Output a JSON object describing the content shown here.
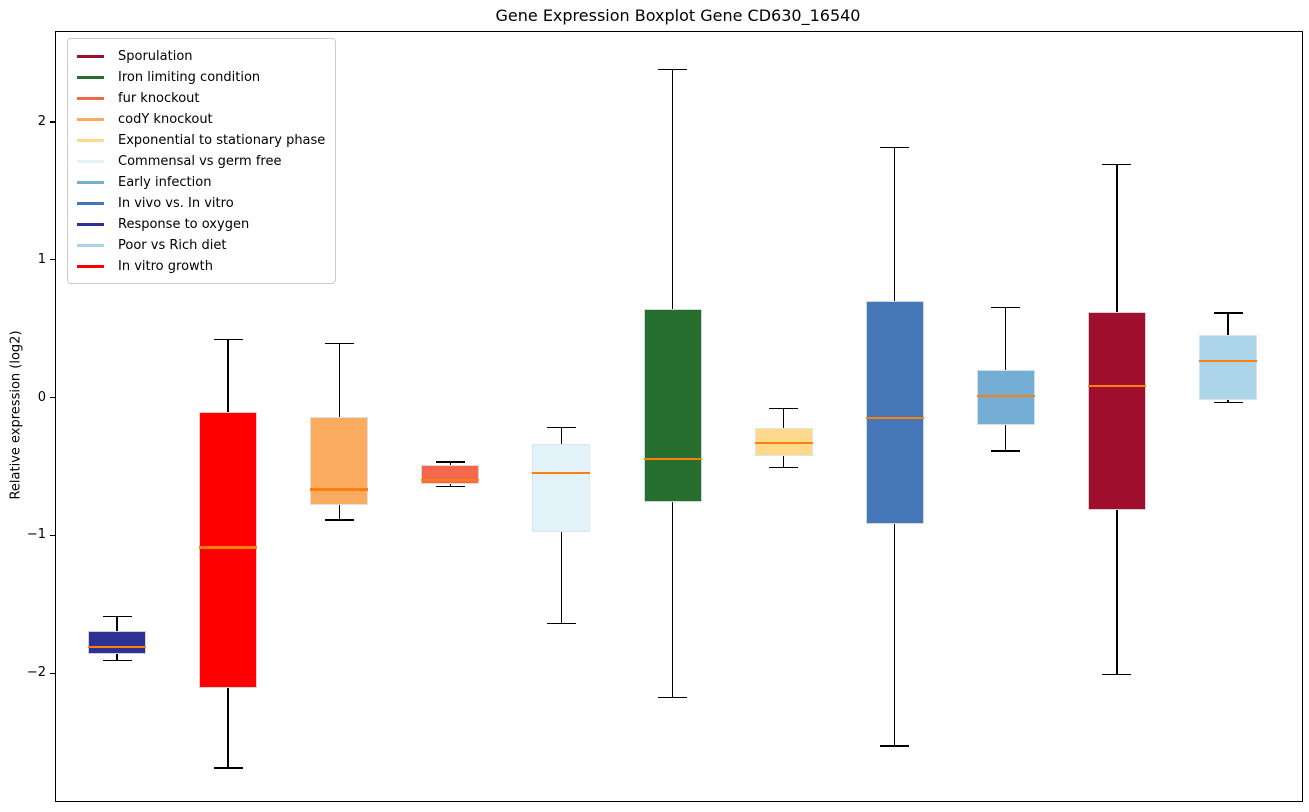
{
  "chart_data": {
    "type": "boxplot",
    "title": "Gene Expression Boxplot Gene CD630_16540",
    "xlabel": "",
    "ylabel": "Relative expression (log2)",
    "ylim": [
      -2.92,
      2.66
    ],
    "grid": false,
    "legend_position": "upper left",
    "yticks": [
      {
        "value": 2,
        "label": "2"
      },
      {
        "value": 1,
        "label": "1"
      },
      {
        "value": 0,
        "label": "0"
      },
      {
        "value": -1,
        "label": "−1"
      },
      {
        "value": -2,
        "label": "−2"
      }
    ],
    "median_color": "#ff7f0e",
    "whisker_color": "#000000",
    "legend": [
      {
        "label": "Sporulation",
        "color": "#a00e2e"
      },
      {
        "label": "Iron limiting condition",
        "color": "#266e2e"
      },
      {
        "label": "fur knockout",
        "color": "#f4694b"
      },
      {
        "label": "codY knockout",
        "color": "#fbab60"
      },
      {
        "label": "Exponential to stationary phase",
        "color": "#fdd98b"
      },
      {
        "label": "Commensal vs germ free",
        "color": "#e1f2f9"
      },
      {
        "label": "Early infection",
        "color": "#74aed4"
      },
      {
        "label": "In vivo vs. In vitro",
        "color": "#4577b8"
      },
      {
        "label": "Response to oxygen",
        "color": "#2d3193"
      },
      {
        "label": "Poor vs Rich diet",
        "color": "#abd4e8"
      },
      {
        "label": "In vitro growth",
        "color": "#ff0000"
      }
    ],
    "series": [
      {
        "name": "Response to oxygen",
        "color": "#2d3193",
        "whisker_low": -1.9,
        "q1": -1.85,
        "median": -1.8,
        "q3": -1.69,
        "whisker_high": -1.58
      },
      {
        "name": "In vitro growth",
        "color": "#ff0000",
        "whisker_low": -2.68,
        "q1": -2.1,
        "median": -1.08,
        "q3": -0.1,
        "whisker_high": 0.43
      },
      {
        "name": "codY knockout",
        "color": "#fbab60",
        "whisker_low": -0.88,
        "q1": -0.77,
        "median": -0.66,
        "q3": -0.13,
        "whisker_high": 0.4
      },
      {
        "name": "fur knockout",
        "color": "#f4694b",
        "whisker_low": -0.64,
        "q1": -0.62,
        "median": -0.59,
        "q3": -0.48,
        "whisker_high": -0.46
      },
      {
        "name": "Commensal vs germ free",
        "color": "#e1f2f9",
        "whisker_low": -1.63,
        "q1": -0.97,
        "median": -0.54,
        "q3": -0.33,
        "whisker_high": -0.21
      },
      {
        "name": "Iron limiting condition",
        "color": "#266e2e",
        "whisker_low": -2.17,
        "q1": -0.75,
        "median": -0.44,
        "q3": 0.65,
        "whisker_high": 2.39
      },
      {
        "name": "Exponential to stationary phase",
        "color": "#fdd98b",
        "whisker_low": -0.5,
        "q1": -0.42,
        "median": -0.32,
        "q3": -0.21,
        "whisker_high": -0.07
      },
      {
        "name": "In vivo vs. In vitro",
        "color": "#4577b8",
        "whisker_low": -2.52,
        "q1": -0.91,
        "median": -0.14,
        "q3": 0.71,
        "whisker_high": 1.82
      },
      {
        "name": "Early infection",
        "color": "#74aed4",
        "whisker_low": -0.38,
        "q1": -0.19,
        "median": 0.02,
        "q3": 0.21,
        "whisker_high": 0.66
      },
      {
        "name": "Sporulation",
        "color": "#a00e2e",
        "whisker_low": -2.0,
        "q1": -0.81,
        "median": 0.09,
        "q3": 0.63,
        "whisker_high": 1.7
      },
      {
        "name": "Poor vs Rich diet",
        "color": "#abd4e8",
        "whisker_low": -0.03,
        "q1": -0.01,
        "median": 0.27,
        "q3": 0.46,
        "whisker_high": 0.62
      }
    ]
  }
}
